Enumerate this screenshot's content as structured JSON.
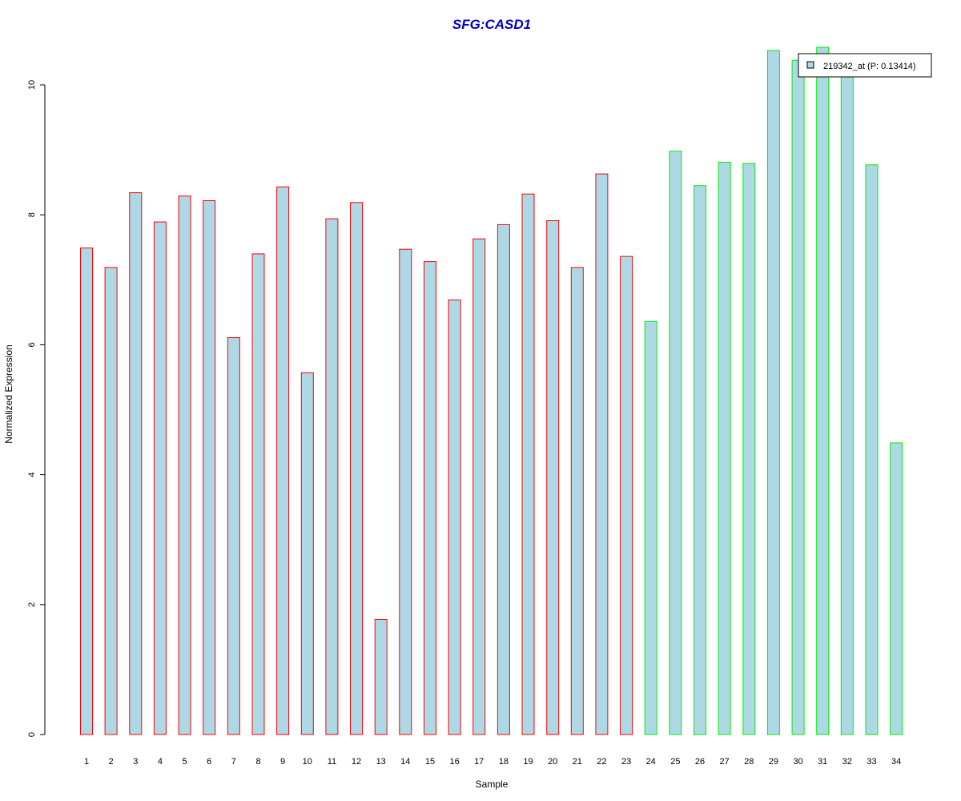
{
  "chart_data": {
    "type": "bar",
    "title": "SFG:CASD1",
    "xlabel": "Sample",
    "ylabel": "Normalized Expression",
    "ylim": [
      0,
      10.5
    ],
    "yticks": [
      0,
      2,
      4,
      6,
      8,
      10
    ],
    "grid": false,
    "legend": {
      "position": "top-right",
      "entries": [
        "219342_at (P: 0.13414)"
      ]
    },
    "categories": [
      "1",
      "2",
      "3",
      "4",
      "5",
      "6",
      "7",
      "8",
      "9",
      "10",
      "11",
      "12",
      "13",
      "14",
      "15",
      "16",
      "17",
      "18",
      "19",
      "20",
      "21",
      "22",
      "23",
      "24",
      "25",
      "26",
      "27",
      "28",
      "29",
      "30",
      "31",
      "32",
      "33",
      "34"
    ],
    "values": [
      7.49,
      7.19,
      8.34,
      7.89,
      8.29,
      8.22,
      6.11,
      7.4,
      8.43,
      5.57,
      7.94,
      8.19,
      1.77,
      7.47,
      7.28,
      6.69,
      7.63,
      7.85,
      8.32,
      7.91,
      7.19,
      8.63,
      7.36,
      6.36,
      8.98,
      8.45,
      8.81,
      8.79,
      10.53,
      10.38,
      10.58,
      10.22,
      8.77,
      4.49
    ],
    "groups": [
      "red",
      "red",
      "red",
      "red",
      "red",
      "red",
      "red",
      "red",
      "red",
      "red",
      "red",
      "red",
      "red",
      "red",
      "red",
      "red",
      "red",
      "red",
      "red",
      "red",
      "red",
      "red",
      "red",
      "green",
      "green",
      "green",
      "green",
      "green",
      "green",
      "green",
      "green",
      "green",
      "green",
      "green"
    ],
    "colors": {
      "fill": "#add8e6",
      "red": "#ff0000",
      "green": "#00ee00",
      "title": "#0000cc"
    }
  }
}
